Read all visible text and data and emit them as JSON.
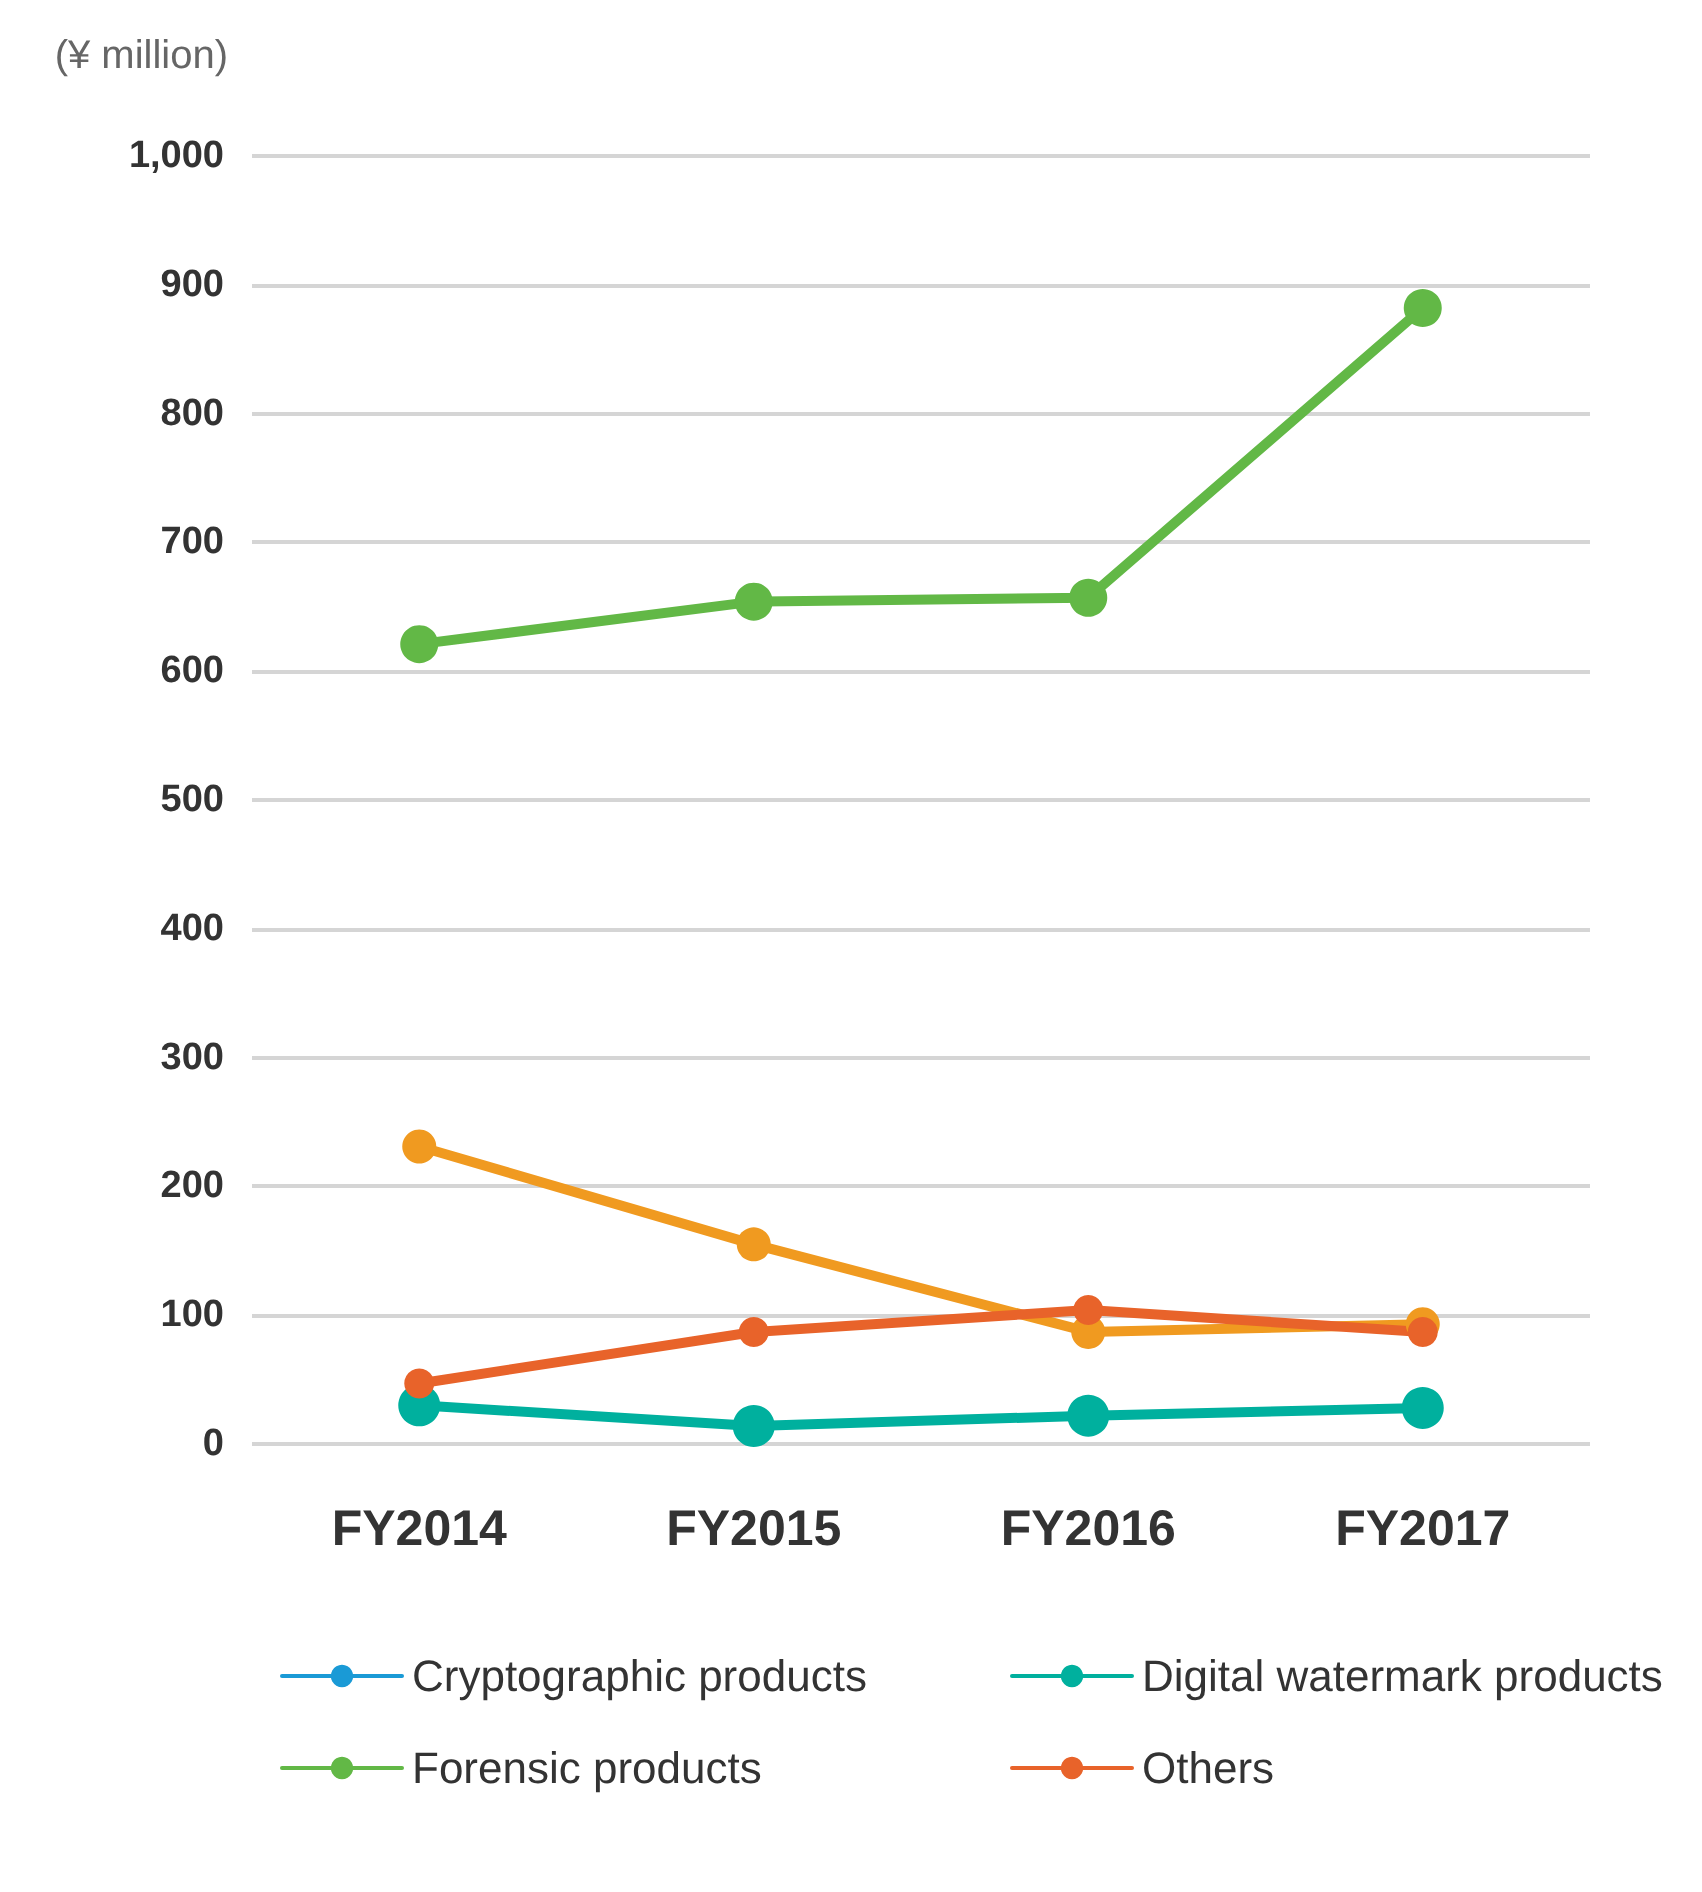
{
  "chart_data": {
    "type": "line",
    "ylabel": "(¥ million)",
    "categories": [
      "FY2014",
      "FY2015",
      "FY2016",
      "FY2017"
    ],
    "series": [
      {
        "name": "Cryptographic products",
        "color": "#1a9ad6",
        "values": [
          null,
          null,
          null,
          null
        ]
      },
      {
        "name": "Digital watermark products",
        "color": "#00b09e",
        "values": [
          30,
          14,
          22,
          28
        ]
      },
      {
        "name": "Forensic products",
        "color": "#62b846",
        "values": [
          621,
          654,
          657,
          882
        ]
      },
      {
        "color": "#f09a20",
        "values": [
          231,
          155,
          87,
          93
        ]
      },
      {
        "name": "Others",
        "color": "#e8632a",
        "values": [
          47,
          87,
          104,
          87
        ]
      }
    ],
    "ylim": [
      0,
      1000
    ],
    "yticks": [
      0,
      100,
      200,
      300,
      400,
      500,
      600,
      700,
      800,
      900,
      {
        "value": 1000,
        "label": "1,000"
      }
    ],
    "grid": "y",
    "legend": "bottom",
    "marker": "circle",
    "line_style": "solid"
  }
}
